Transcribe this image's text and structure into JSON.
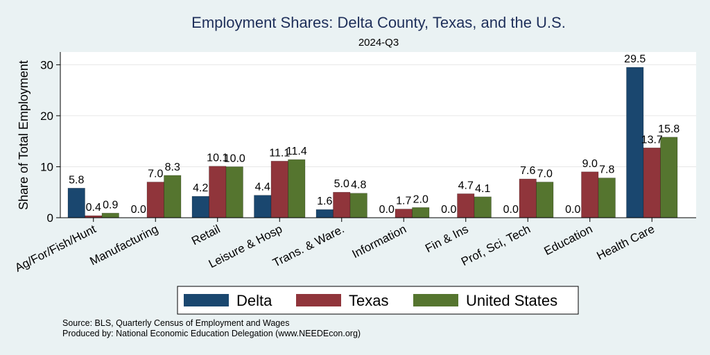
{
  "chart_data": {
    "type": "bar",
    "title": "Employment Shares: Delta County, Texas, and the U.S.",
    "subtitle": "2024-Q3",
    "ylabel": "Share of Total Employment",
    "xlabel": "",
    "ylim": [
      0,
      32.5
    ],
    "yticks": [
      0,
      10,
      20,
      30
    ],
    "grid": true,
    "legend_position": "bottom",
    "categories": [
      "Ag/For/Fish/Hunt",
      "Manufacturing",
      "Retail",
      "Leisure & Hosp",
      "Trans. & Ware.",
      "Information",
      "Fin & Ins",
      "Prof, Sci, Tech",
      "Education",
      "Health Care"
    ],
    "series": [
      {
        "name": "Delta",
        "color": "#1a476f",
        "values": [
          5.8,
          0.0,
          4.2,
          4.4,
          1.6,
          0.0,
          0.0,
          0.0,
          0.0,
          29.5
        ],
        "labels": [
          "5.8",
          "0.0",
          "4.2",
          "4.4",
          "1.6",
          "0.0",
          "0.0",
          "0.0",
          "0.0",
          "29.5"
        ]
      },
      {
        "name": "Texas",
        "color": "#90353b",
        "values": [
          0.4,
          7.0,
          10.1,
          11.1,
          5.0,
          1.7,
          4.7,
          7.6,
          9.0,
          13.7
        ],
        "labels": [
          "0.4",
          "7.0",
          "10.1",
          "11.1",
          "5.0",
          "1.7",
          "4.7",
          "7.6",
          "9.0",
          "13.7"
        ]
      },
      {
        "name": "United States",
        "color": "#55752f",
        "values": [
          0.9,
          8.3,
          10.0,
          11.4,
          4.8,
          2.0,
          4.1,
          7.0,
          7.8,
          15.8
        ],
        "labels": [
          "0.9",
          "8.3",
          "10.0",
          "11.4",
          "4.8",
          "2.0",
          "4.1",
          "7.0",
          "7.8",
          "15.8"
        ]
      }
    ]
  },
  "footer": {
    "source": "Source: BLS, Quarterly Census of Employment and Wages",
    "produced_by": "Produced by: National Economic Education Delegation (www.NEEDEcon.org)"
  },
  "colors": {
    "background": "#eaf2f3",
    "plot_background": "#ffffff",
    "title": "#1e2f5a"
  }
}
